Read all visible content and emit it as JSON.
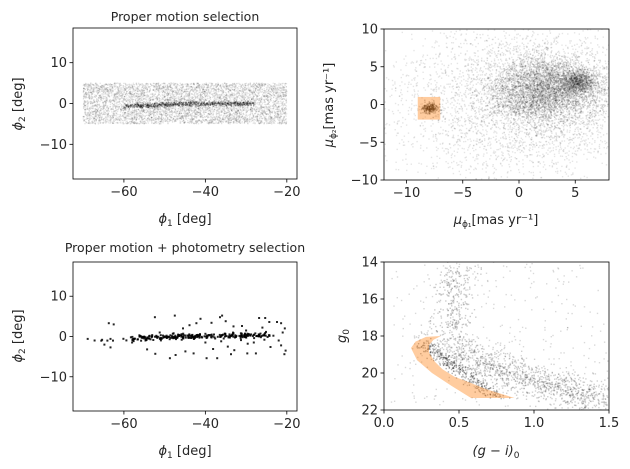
{
  "chart_data": [
    {
      "id": "tl",
      "type": "scatter",
      "title": "Proper motion selection",
      "xlabel": {
        "symbol": "ϕ",
        "sub": "1",
        "unit": " [deg]"
      },
      "ylabel": {
        "symbol": "ϕ",
        "sub": "2",
        "unit": " [deg]"
      },
      "xlim": [
        -72.5,
        -17.5
      ],
      "ylim": [
        -18.5,
        18.5
      ],
      "xticks": [
        -60,
        -40,
        -20
      ],
      "xticklabels": [
        "−60",
        "−40",
        "−20"
      ],
      "yticks": [
        -10,
        0,
        10
      ],
      "yticklabels": [
        "−10",
        "0",
        "10"
      ],
      "point_color": "#000000",
      "field_region": {
        "phi1": [
          -70,
          -20
        ],
        "phi2": [
          -5,
          5
        ]
      },
      "stream_track": {
        "phi1": [
          -60,
          -45,
          -28
        ],
        "phi2": [
          -0.7,
          -0.1,
          0.0
        ]
      }
    },
    {
      "id": "tr",
      "type": "scatter",
      "title": "",
      "xlabel": {
        "symbol": "μ",
        "sub": "ϕ₁",
        "unit": "[mas yr⁻¹]"
      },
      "ylabel": {
        "symbol": "μ",
        "sub": "ϕ₂",
        "unit": "[mas yr⁻¹]"
      },
      "xlim": [
        -12,
        8
      ],
      "ylim": [
        -10,
        10
      ],
      "xticks": [
        -10,
        -5,
        0,
        5
      ],
      "xticklabels": [
        "−10",
        "−5",
        "0",
        "5"
      ],
      "yticks": [
        -10,
        -5,
        0,
        5,
        10
      ],
      "yticklabels": [
        "−10",
        "−5",
        "0",
        "5",
        "10"
      ],
      "point_color": "#000000",
      "field_peak": [
        2.5,
        2.0
      ],
      "cluster_center": [
        -7.9,
        -0.5
      ],
      "selection_box": {
        "x": [
          -9,
          -7
        ],
        "y": [
          -2,
          1
        ],
        "color": "#ff7f0e",
        "alpha": 0.4
      }
    },
    {
      "id": "bl",
      "type": "scatter",
      "title": "Proper motion + photometry selection",
      "xlabel": {
        "symbol": "ϕ",
        "sub": "1",
        "unit": " [deg]"
      },
      "ylabel": {
        "symbol": "ϕ",
        "sub": "2",
        "unit": " [deg]"
      },
      "xlim": [
        -72.5,
        -17.5
      ],
      "ylim": [
        -18.5,
        18.5
      ],
      "xticks": [
        -60,
        -40,
        -20
      ],
      "xticklabels": [
        "−60",
        "−40",
        "−20"
      ],
      "yticks": [
        -10,
        0,
        10
      ],
      "yticklabels": [
        "−10",
        "0",
        "10"
      ],
      "point_color": "#000000",
      "stream_track": {
        "phi1": [
          -66,
          -45,
          -24
        ],
        "phi2": [
          -0.8,
          0.0,
          0.2
        ]
      },
      "outliers": [
        [
          -63.7,
          3.3
        ],
        [
          -62.5,
          3.0
        ],
        [
          -63.3,
          -2.7
        ],
        [
          -52.4,
          4.8
        ],
        [
          -52.3,
          -4.3
        ],
        [
          -47.5,
          5.2
        ],
        [
          -48.7,
          -5.4
        ],
        [
          -47.3,
          -4.6
        ],
        [
          -44.9,
          -3.7
        ],
        [
          -42.9,
          -4.2
        ],
        [
          -41.2,
          4.4
        ],
        [
          -39.7,
          -5.4
        ],
        [
          -36.4,
          4.8
        ],
        [
          -35.9,
          5.2
        ],
        [
          -37.1,
          -5.4
        ],
        [
          -38.1,
          -3.1
        ],
        [
          -36.1,
          -1.2
        ],
        [
          -33.1,
          2.5
        ],
        [
          -32.9,
          -3.4
        ],
        [
          -31.0,
          2.6
        ],
        [
          -29.6,
          -1.8
        ],
        [
          -27.6,
          -4.2
        ],
        [
          -26.8,
          4.6
        ],
        [
          -25.3,
          4.6
        ],
        [
          -24.3,
          3.6
        ],
        [
          -22.4,
          3.6
        ],
        [
          -21.4,
          3.3
        ],
        [
          -20.6,
          -4.4
        ],
        [
          -21.4,
          -2.2
        ],
        [
          -24.0,
          -2.6
        ],
        [
          -23.3,
          0.2
        ],
        [
          -68.9,
          -0.6
        ],
        [
          -67.2,
          -1.0
        ],
        [
          -64.8,
          -2.0
        ],
        [
          -54.3,
          -3.2
        ],
        [
          -51.2,
          1.0
        ],
        [
          -43.9,
          2.8
        ],
        [
          -42.2,
          3.3
        ],
        [
          -38.5,
          3.4
        ],
        [
          -33.7,
          -4.4
        ],
        [
          -29.7,
          -4.2
        ],
        [
          -28.1,
          -1.5
        ],
        [
          -20.5,
          2.0
        ],
        [
          -21.0,
          1.0
        ],
        [
          -22.0,
          -1.0
        ],
        [
          -20.3,
          -3.5
        ],
        [
          -25.5,
          -0.8
        ],
        [
          -26.0,
          2.2
        ],
        [
          -30.0,
          1.5
        ],
        [
          -34.5,
          -2.5
        ],
        [
          -35.0,
          3.8
        ],
        [
          -40.0,
          -1.5
        ],
        [
          -45.5,
          2.0
        ],
        [
          -58.0,
          -1.5
        ]
      ]
    },
    {
      "id": "br",
      "type": "scatter",
      "title": "",
      "xlabel": {
        "symbol": "(g − i)",
        "sub": "0",
        "unit": ""
      },
      "ylabel": {
        "symbol": "g",
        "sub": "0",
        "unit": ""
      },
      "xlim": [
        0,
        1.5
      ],
      "ylim": [
        22,
        14
      ],
      "y_inverted": true,
      "xticks": [
        0,
        0.5,
        1.0,
        1.5
      ],
      "xticklabels": [
        "0.0",
        "0.5",
        "1.0",
        "1.5"
      ],
      "yticks": [
        14,
        16,
        18,
        20,
        22
      ],
      "yticklabels": [
        "14",
        "16",
        "18",
        "20",
        "22"
      ],
      "point_color": "#000000",
      "selection_polygon": {
        "color": "#ff7f0e",
        "alpha": 0.4,
        "points": [
          [
            0.38,
            18.0
          ],
          [
            0.28,
            18.05
          ],
          [
            0.21,
            18.3
          ],
          [
            0.18,
            18.65
          ],
          [
            0.22,
            19.3
          ],
          [
            0.32,
            20.0
          ],
          [
            0.45,
            20.7
          ],
          [
            0.58,
            21.35
          ],
          [
            0.87,
            21.35
          ],
          [
            0.69,
            20.9
          ],
          [
            0.55,
            20.45
          ],
          [
            0.47,
            20.2
          ],
          [
            0.39,
            19.8
          ],
          [
            0.34,
            19.4
          ],
          [
            0.3,
            18.9
          ],
          [
            0.3,
            18.5
          ],
          [
            0.33,
            18.2
          ],
          [
            0.38,
            18.0
          ]
        ]
      }
    }
  ]
}
